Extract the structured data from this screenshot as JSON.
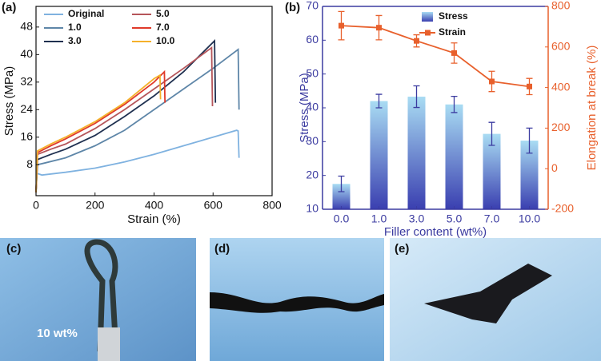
{
  "chart_data": [
    {
      "type": "line",
      "panel_label": "(a)",
      "xlabel": "Strain (%)",
      "ylabel": "Stress (MPa)",
      "xlim": [
        0,
        800
      ],
      "xticks": [
        0,
        200,
        400,
        600,
        800
      ],
      "ylim": [
        -1,
        54
      ],
      "yticks": [
        8,
        16,
        24,
        32,
        40,
        48
      ],
      "legend": "upper left",
      "series": [
        {
          "name": "Original",
          "color": "#7fb2e0",
          "x": [
            0,
            3,
            20,
            100,
            200,
            300,
            400,
            500,
            600,
            680,
            685,
            688
          ],
          "values": [
            0,
            5.5,
            5,
            5.8,
            7,
            8.8,
            11,
            13.5,
            16,
            18,
            17.8,
            10
          ]
        },
        {
          "name": "1.0",
          "color": "#5e86a8",
          "x": [
            0,
            5,
            30,
            100,
            200,
            300,
            400,
            500,
            600,
            685,
            688
          ],
          "values": [
            0,
            8,
            8.5,
            10,
            13.5,
            18,
            24,
            30,
            36,
            41.5,
            24
          ]
        },
        {
          "name": "3.0",
          "color": "#1f3050",
          "x": [
            0,
            5,
            50,
            100,
            200,
            300,
            400,
            500,
            605,
            608
          ],
          "values": [
            0,
            9.5,
            11,
            12.5,
            16.5,
            22,
            28,
            35,
            44,
            26
          ]
        },
        {
          "name": "5.0",
          "color": "#b5555a",
          "x": [
            0,
            5,
            50,
            100,
            200,
            300,
            400,
            500,
            595,
            598
          ],
          "values": [
            0,
            11,
            12.5,
            14,
            18.5,
            24,
            30,
            36,
            42,
            25
          ]
        },
        {
          "name": "7.0",
          "color": "#e03a2a",
          "x": [
            0,
            5,
            50,
            100,
            200,
            300,
            400,
            435,
            437
          ],
          "values": [
            0,
            11.5,
            13.5,
            15.5,
            20,
            25.5,
            32,
            35,
            26
          ]
        },
        {
          "name": "10.0",
          "color": "#f5b12a",
          "x": [
            0,
            5,
            50,
            100,
            200,
            300,
            400,
            420,
            422
          ],
          "values": [
            0,
            12,
            14,
            16,
            20.5,
            26,
            33,
            34,
            27
          ]
        }
      ]
    },
    {
      "type": "combo",
      "panel_label": "(b)",
      "xlabel": "Filler content (wt%)",
      "ylabel": "Stress (MPa)",
      "y2label": "Elongation at break (%)",
      "categories": [
        "0.0",
        "1.0",
        "3.0",
        "5.0",
        "7.0",
        "10.0"
      ],
      "ylim": [
        10,
        70
      ],
      "yticks": [
        10,
        20,
        30,
        40,
        50,
        60,
        70
      ],
      "y2lim": [
        -200,
        800
      ],
      "y2ticks": [
        -200,
        0,
        200,
        400,
        600,
        800
      ],
      "legend": "upper right",
      "series": [
        {
          "name": "Stress",
          "type": "bar",
          "axis": "y",
          "color": "#3a3fb0",
          "values": [
            17.5,
            42,
            43.3,
            41,
            32.3,
            30.3
          ],
          "errors": [
            2.3,
            2,
            3.2,
            2.4,
            3.4,
            3.7
          ]
        },
        {
          "name": "Strain",
          "type": "line",
          "axis": "y2",
          "color": "#e8602c",
          "values": [
            705,
            695,
            630,
            570,
            430,
            405
          ],
          "errors": [
            70,
            60,
            30,
            50,
            50,
            40
          ]
        }
      ]
    }
  ],
  "photos": [
    {
      "label": "(c)",
      "caption": "10 wt%"
    },
    {
      "label": "(d)"
    },
    {
      "label": "(e)"
    }
  ]
}
